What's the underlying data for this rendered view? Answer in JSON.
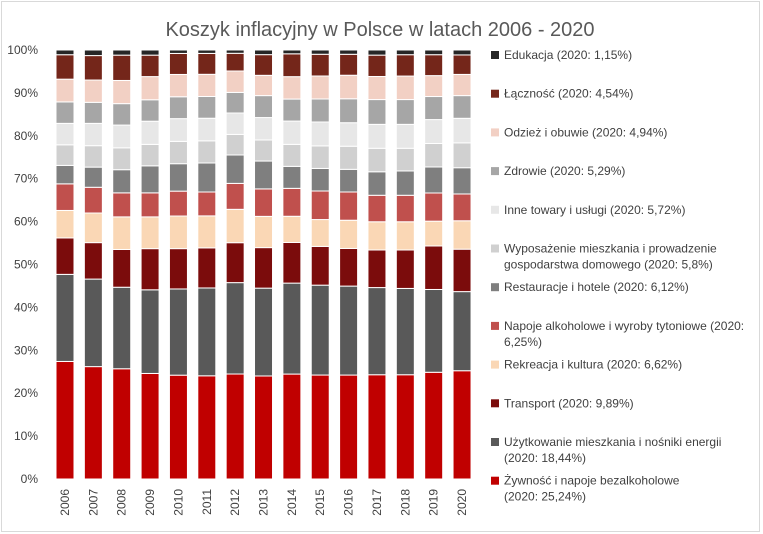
{
  "chart_data": {
    "type": "bar",
    "stacked": true,
    "title": "Koszyk inflacyjny w Polsce w latach 2006 - 2020",
    "categories": [
      "2006",
      "2007",
      "2008",
      "2009",
      "2010",
      "2011",
      "2012",
      "2013",
      "2014",
      "2015",
      "2016",
      "2017",
      "2018",
      "2019",
      "2020"
    ],
    "y_ticks": [
      "0%",
      "10%",
      "20%",
      "30%",
      "40%",
      "50%",
      "60%",
      "70%",
      "80%",
      "90%",
      "100%"
    ],
    "ylim": [
      0,
      100
    ],
    "grid": false,
    "legend_position": "right",
    "series": [
      {
        "name": "Żywność i napoje bezalkoholowe (2020: 25,24%)",
        "color": "#c00000",
        "values": [
          27.4,
          26.2,
          25.7,
          24.6,
          24.2,
          24.2,
          25.5,
          24.4,
          24.8,
          24.4,
          24.3,
          24.4,
          24.4,
          25.0,
          25.24
        ]
      },
      {
        "name": "Użytkowanie mieszkania i nośniki energii (2020: 18,44%)",
        "color": "#595959",
        "values": [
          20.3,
          20.4,
          19.0,
          19.5,
          20.1,
          20.6,
          22.2,
          20.8,
          21.5,
          21.1,
          20.8,
          20.4,
          20.2,
          19.4,
          18.44
        ]
      },
      {
        "name": "Transport (2020: 9,89%)",
        "color": "#7b0c0c",
        "values": [
          8.5,
          8.5,
          8.8,
          9.6,
          9.4,
          9.4,
          9.7,
          9.6,
          9.6,
          9.1,
          8.8,
          8.8,
          9.0,
          10.2,
          9.89
        ]
      },
      {
        "name": "Rekreacja i kultura (2020: 6,62%)",
        "color": "#fad7b5",
        "values": [
          6.4,
          6.9,
          7.6,
          7.4,
          7.6,
          7.5,
          8.1,
          7.4,
          6.2,
          6.3,
          6.6,
          6.6,
          6.6,
          5.8,
          6.62
        ]
      },
      {
        "name": "Napoje alkoholowe i wyroby tytoniowe (2020: 6,25%)",
        "color": "#c0504d",
        "values": [
          6.2,
          6.0,
          5.6,
          5.6,
          5.8,
          5.6,
          6.3,
          6.5,
          6.6,
          6.7,
          6.6,
          6.2,
          6.2,
          6.6,
          6.25
        ]
      },
      {
        "name": "Restauracje i hotele (2020: 6,12%)",
        "color": "#7f7f7f",
        "values": [
          4.3,
          4.7,
          5.4,
          6.3,
          6.4,
          6.8,
          6.9,
          6.6,
          5.2,
          5.3,
          5.3,
          5.5,
          5.7,
          6.1,
          6.12
        ]
      },
      {
        "name": "Wyposażenie mieszkania i prowadzenie gospodarstwa domowego (2020: 5,8%)",
        "color": "#d0d0d0",
        "values": [
          4.8,
          5.0,
          5.1,
          5.0,
          5.2,
          5.2,
          5.0,
          5.0,
          5.2,
          5.3,
          5.4,
          5.5,
          5.3,
          5.5,
          5.8
        ]
      },
      {
        "name": "Inne towary i usługi (2020: 5,72%)",
        "color": "#e7e7e7",
        "values": [
          5.0,
          5.2,
          5.3,
          5.4,
          5.3,
          5.3,
          5.2,
          5.3,
          5.5,
          5.6,
          5.5,
          5.6,
          5.6,
          5.6,
          5.72
        ]
      },
      {
        "name": "Zdrowie (2020: 5,29%)",
        "color": "#a6a6a6",
        "values": [
          5.0,
          4.9,
          5.0,
          5.0,
          5.1,
          5.1,
          5.0,
          5.2,
          5.2,
          5.4,
          5.6,
          5.8,
          5.8,
          5.4,
          5.29
        ]
      },
      {
        "name": "Odzież i obuwie (2020: 4,94%)",
        "color": "#f2d0c4",
        "values": [
          5.3,
          5.2,
          5.4,
          5.4,
          5.2,
          5.2,
          5.2,
          4.8,
          5.3,
          5.4,
          5.5,
          5.4,
          5.5,
          4.9,
          4.94
        ]
      },
      {
        "name": "Łączność (2020: 4,54%)",
        "color": "#74261a",
        "values": [
          5.7,
          5.7,
          5.9,
          5.0,
          4.9,
          4.9,
          4.3,
          4.9,
          5.4,
          5.1,
          4.9,
          5.0,
          5.0,
          4.9,
          4.54
        ]
      },
      {
        "name": "Edukacja (2020: 1,15%)",
        "color": "#262626",
        "values": [
          1.1,
          1.3,
          1.2,
          1.2,
          0.8,
          0.8,
          0.8,
          1.1,
          0.9,
          1.0,
          1.0,
          1.2,
          1.1,
          1.1,
          1.15
        ]
      }
    ],
    "legend_order": [
      [
        "Edukacja (2020: 1,15%)"
      ],
      [
        "Łączność (2020: 4,54%)"
      ],
      [
        "Odzież i obuwie (2020: 4,94%)"
      ],
      [
        "Zdrowie (2020: 5,29%)"
      ],
      [
        "Inne towary i usługi (2020: 5,72%)"
      ],
      [
        "Wyposażenie mieszkania i prowadzenie",
        "gospodarstwa domowego (2020: 5,8%)"
      ],
      [
        "Restauracje i hotele (2020: 6,12%)"
      ],
      [
        "Napoje alkoholowe i wyroby tytoniowe (2020:",
        "6,25%)"
      ],
      [
        "Rekreacja i kultura (2020: 6,62%)"
      ],
      [
        "Transport (2020: 9,89%)"
      ],
      [
        "Użytkowanie mieszkania i nośniki energii",
        "(2020: 18,44%)"
      ],
      [
        "Żywność i napoje bezalkoholowe",
        "(2020: 25,24%)"
      ]
    ]
  }
}
